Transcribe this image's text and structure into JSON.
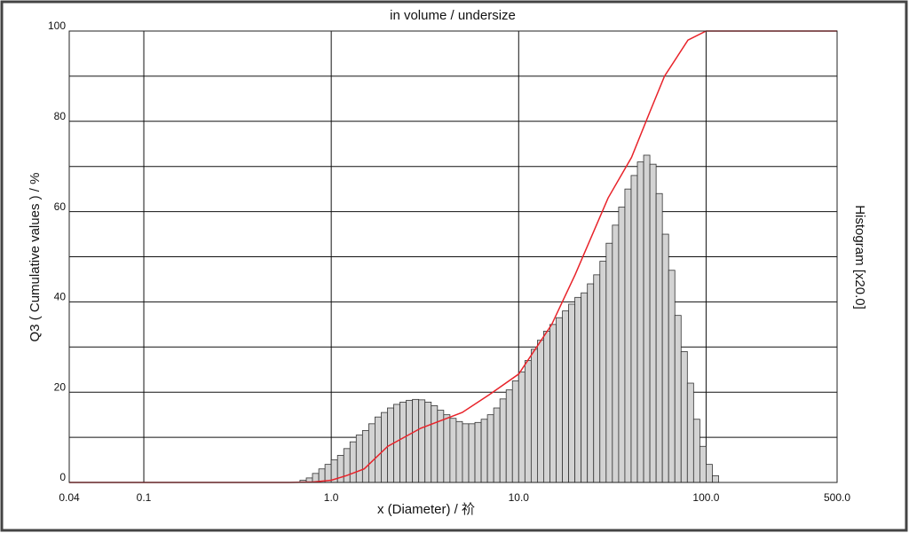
{
  "chart_data": [
    {
      "type": "histogram",
      "title": "in volume / undersize",
      "xlabel": "x (Diameter) / 祄",
      "ylabel": "Q3 ( Cumulative values ) / %",
      "y2label": "Histogram [x20.0]",
      "xscale": "log",
      "xlim": [
        0.04,
        500
      ],
      "xticks": [
        0.04,
        0.1,
        {
          "value": 1,
          "label": "1.0"
        },
        {
          "value": 10,
          "label": "10.0"
        },
        {
          "value": 100,
          "label": "100.0"
        },
        {
          "value": 500,
          "label": "500.0"
        }
      ],
      "ylim": [
        0,
        100
      ],
      "yticks": [
        0,
        20,
        40,
        60,
        80,
        100
      ],
      "ygrid": [
        10,
        30,
        50,
        70,
        90
      ],
      "grid": true,
      "color": "#d3d3d3",
      "bins": [
        0.681,
        0.736,
        0.794,
        0.858,
        0.926,
        1,
        1.08,
        1.166,
        1.259,
        1.359,
        1.468,
        1.585,
        1.711,
        1.848,
        1.995,
        2.154,
        2.326,
        2.512,
        2.712,
        2.929,
        3.162,
        3.415,
        3.687,
        3.981,
        4.299,
        4.642,
        5.012,
        5.412,
        5.843,
        6.31,
        6.813,
        7.356,
        7.943,
        8.577,
        9.261,
        10,
        10.8,
        11.66,
        12.59,
        13.59,
        14.68,
        15.85,
        17.11,
        18.48,
        19.95,
        21.54,
        23.26,
        25.12,
        27.12,
        29.29,
        31.62,
        34.15,
        36.87,
        39.81,
        42.99,
        46.42,
        50.12,
        54.12,
        58.43,
        63.1,
        68.13,
        73.56,
        79.43,
        85.77,
        92.61,
        100,
        108,
        116.6
      ],
      "counts": [
        0.5,
        1,
        2,
        3,
        4,
        5,
        6,
        7.5,
        9,
        10.5,
        11.5,
        13,
        14.5,
        15.5,
        16.5,
        17.3,
        17.8,
        18.2,
        18.4,
        18.3,
        17.8,
        17,
        16,
        15,
        14.2,
        13.5,
        13,
        13,
        13.3,
        14,
        15,
        16.5,
        18.5,
        20.5,
        22.5,
        24.5,
        27,
        29.5,
        31.5,
        33.5,
        35,
        36.5,
        38,
        39.5,
        41,
        42,
        44,
        46,
        49,
        53,
        57,
        61,
        65,
        68,
        71,
        72.5,
        70.5,
        64,
        55,
        47,
        37,
        29,
        22,
        14,
        8,
        4,
        1.5
      ]
    },
    {
      "type": "line",
      "color": "#e8232a",
      "x": [
        0.04,
        0.6,
        0.8,
        1,
        1.2,
        1.5,
        2,
        3,
        5,
        7,
        10,
        15,
        20,
        30,
        40,
        50,
        60,
        80,
        100,
        500
      ],
      "values": [
        0,
        0,
        0.1,
        0.5,
        1.5,
        3,
        8,
        12,
        15.5,
        19.5,
        24,
        35,
        46,
        63,
        72,
        82,
        90,
        98,
        100,
        100
      ]
    }
  ]
}
